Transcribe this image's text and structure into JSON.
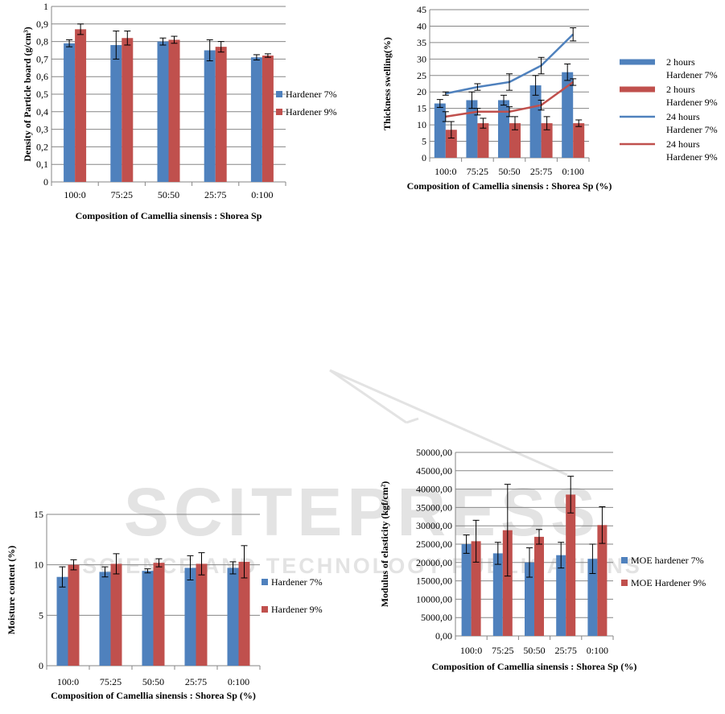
{
  "watermark": {
    "brand": "SCITEPRESS",
    "tagline": "SCIENCE AND TECHNOLOGY PUBLICATIONS"
  },
  "colors": {
    "blue": "#4F81BD",
    "red": "#C0504D",
    "grid": "#868686",
    "axis": "#868686",
    "watermark": "#e3e3e3"
  },
  "chart_data": [
    {
      "id": "density",
      "type": "bar",
      "categories": [
        "100:0",
        "75:25",
        "50:50",
        "25:75",
        "0:100"
      ],
      "series": [
        {
          "name": "Hardener 7%",
          "color": "#4F81BD",
          "values": [
            0.79,
            0.78,
            0.8,
            0.75,
            0.71
          ],
          "errors": [
            0.02,
            0.08,
            0.02,
            0.06,
            0.015
          ]
        },
        {
          "name": "Hardener 9%",
          "color": "#C0504D",
          "values": [
            0.87,
            0.82,
            0.81,
            0.77,
            0.72
          ],
          "errors": [
            0.03,
            0.04,
            0.02,
            0.03,
            0.01
          ]
        }
      ],
      "ylim": [
        0,
        1
      ],
      "yticks": [
        0,
        0.1,
        0.2,
        0.3,
        0.4,
        0.5,
        0.6,
        0.7,
        0.8,
        0.9,
        1
      ],
      "ytick_labels": [
        "0",
        "0,1",
        "0,2",
        "0,3",
        "0,4",
        "0,5",
        "0,6",
        "0,7",
        "0,8",
        "0,9",
        "1"
      ],
      "xlabel": "Composition of Camellia sinensis : Shorea Sp",
      "ylabel": "Density of Particle board (g/cm³)",
      "grid": true,
      "legend": "right"
    },
    {
      "id": "thickness",
      "type": "bar",
      "categories": [
        "100:0",
        "75:25",
        "50:50",
        "25:75",
        "0:100"
      ],
      "series": [
        {
          "name": "2 hours Hardener 7%",
          "color": "#4F81BD",
          "values": [
            16.5,
            17.5,
            17.5,
            22,
            26
          ],
          "errors": [
            1.2,
            2.5,
            1.5,
            3,
            2.5
          ]
        },
        {
          "name": "2 hours Hardener 9%",
          "color": "#C0504D",
          "values": [
            8.5,
            10.5,
            10.5,
            10.5,
            10.5
          ],
          "errors": [
            2.5,
            1.5,
            2,
            2,
            1
          ]
        }
      ],
      "lines": [
        {
          "name": "24 hours Hardener 7%",
          "color": "#4F81BD",
          "values": [
            19.5,
            21.5,
            23,
            28,
            37.5
          ],
          "errors": [
            0.5,
            1,
            2.5,
            2.5,
            2
          ]
        },
        {
          "name": "24 hours Hardener 9%",
          "color": "#C0504D",
          "values": [
            12.5,
            14,
            14,
            16,
            23
          ],
          "errors": [
            1.5,
            1,
            1.5,
            1.5,
            1
          ]
        }
      ],
      "ylim": [
        0,
        45
      ],
      "yticks": [
        0,
        5,
        10,
        15,
        20,
        25,
        30,
        35,
        40,
        45
      ],
      "ytick_labels": [
        "0",
        "5",
        "10",
        "15",
        "20",
        "25",
        "30",
        "35",
        "40",
        "45"
      ],
      "xlabel": "Composition of Camellia sinensis : Shorea Sp (%)",
      "ylabel": "Thickness swelling(%)",
      "grid": true,
      "legend": "right"
    },
    {
      "id": "moisture",
      "type": "bar",
      "categories": [
        "100:0",
        "75:25",
        "50:50",
        "25:75",
        "0:100"
      ],
      "series": [
        {
          "name": "Hardener 7%",
          "color": "#4F81BD",
          "values": [
            8.8,
            9.3,
            9.4,
            9.7,
            9.7
          ],
          "errors": [
            1.0,
            0.5,
            0.2,
            1.2,
            0.6
          ]
        },
        {
          "name": "Hardener 9%",
          "color": "#C0504D",
          "values": [
            10.0,
            10.1,
            10.2,
            10.1,
            10.3
          ],
          "errors": [
            0.5,
            1.0,
            0.4,
            1.1,
            1.6
          ]
        }
      ],
      "ylim": [
        0,
        15
      ],
      "yticks": [
        0,
        5,
        10,
        15
      ],
      "ytick_labels": [
        "0",
        "5",
        "10",
        "15"
      ],
      "xlabel": "Composition of Camellia sinensis : Shorea Sp (%)",
      "ylabel": "Moisture content (%)",
      "grid": true,
      "legend": "right"
    },
    {
      "id": "moe",
      "type": "bar",
      "categories": [
        "100:0",
        "75:25",
        "50:50",
        "25:75",
        "0:100"
      ],
      "series": [
        {
          "name": "MOE hardener 7%",
          "color": "#4F81BD",
          "values": [
            25000,
            22500,
            20000,
            22000,
            21000
          ],
          "errors": [
            2500,
            3000,
            4000,
            3500,
            4000
          ]
        },
        {
          "name": "MOE Hardener 9%",
          "color": "#C0504D",
          "values": [
            25800,
            28800,
            27000,
            38500,
            30200
          ],
          "errors": [
            5700,
            12500,
            2000,
            5000,
            5000
          ]
        }
      ],
      "ylim": [
        0,
        50000
      ],
      "yticks": [
        0,
        5000,
        10000,
        15000,
        20000,
        25000,
        30000,
        35000,
        40000,
        45000,
        50000
      ],
      "ytick_labels": [
        "0,00",
        "5000,00",
        "10000,00",
        "15000,00",
        "20000,00",
        "25000,00",
        "30000,00",
        "35000,00",
        "40000,00",
        "45000,00",
        "50000,00"
      ],
      "xlabel": "Composition of Camellia sinensis : Shorea Sp (%)",
      "ylabel": "Modulus of elasticity (kgf/cm²)",
      "grid": true,
      "legend": "right"
    }
  ]
}
